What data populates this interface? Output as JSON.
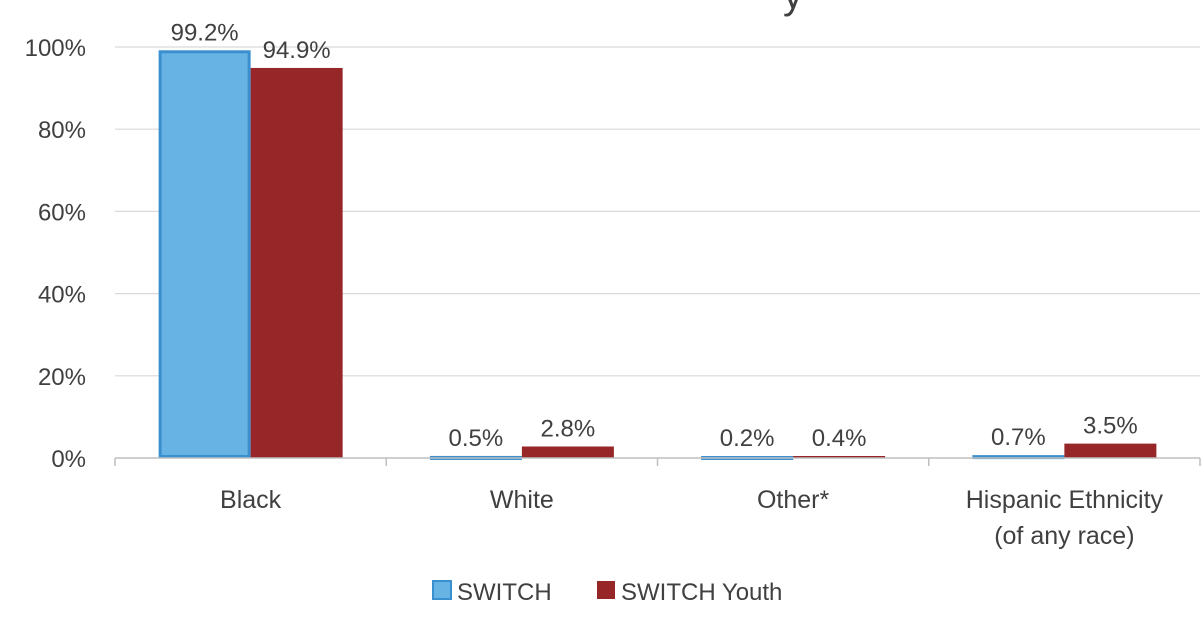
{
  "chart_data": {
    "type": "bar",
    "title_fragment": "y",
    "categories": [
      [
        "Black"
      ],
      [
        "White"
      ],
      [
        "Other*"
      ],
      [
        "Hispanic Ethnicity",
        "(of any race)"
      ]
    ],
    "series": [
      {
        "name": "SWITCH",
        "values": [
          99.2,
          0.5,
          0.2,
          0.7
        ],
        "labels": [
          "99.2%",
          "0.5%",
          "0.2%",
          "0.7%"
        ],
        "color": "#67B3E3",
        "edge": "#3A8FCF"
      },
      {
        "name": "SWITCH Youth",
        "values": [
          94.9,
          2.8,
          0.4,
          3.5
        ],
        "labels": [
          "94.9%",
          "2.8%",
          "0.4%",
          "3.5%"
        ],
        "color": "#962628",
        "edge": "#962628"
      }
    ],
    "ylim": [
      0,
      100
    ],
    "yticks": [
      0,
      20,
      40,
      60,
      80,
      100
    ],
    "ytick_labels": [
      "0%",
      "20%",
      "40%",
      "60%",
      "80%",
      "100%"
    ],
    "grid": true,
    "legend_position": "bottom"
  }
}
